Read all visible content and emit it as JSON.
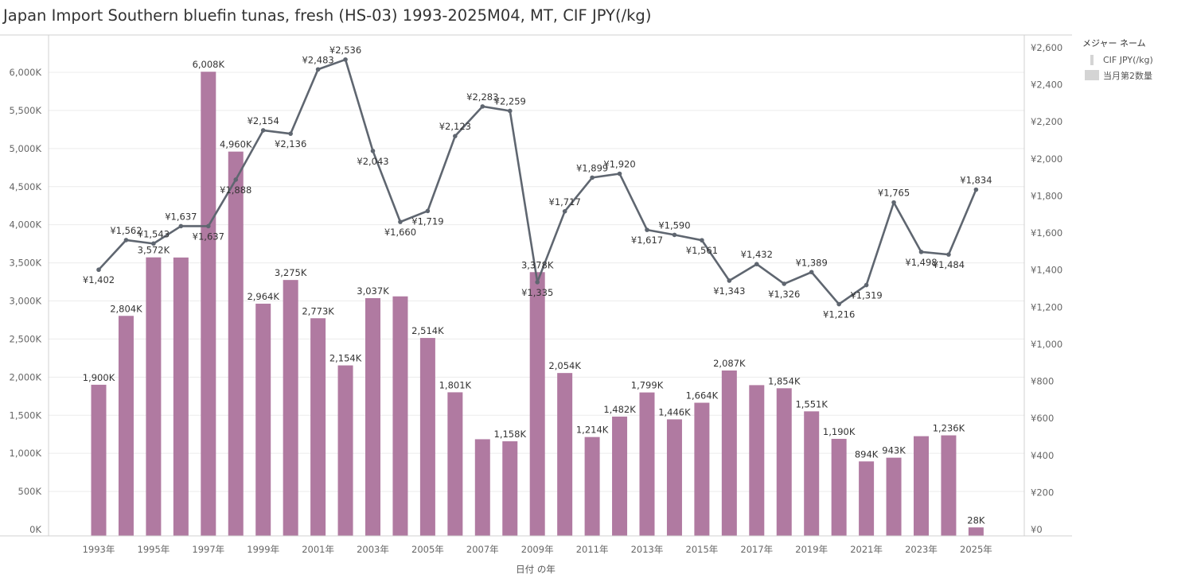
{
  "title": "Japan Import Southern bluefin tunas, fresh (HS-03) 1993-2025M04, MT, CIF JPY(/kg)",
  "legend": {
    "title": "メジャー ネーム",
    "items": [
      {
        "label": "CIF JPY(/kg)",
        "kind": "line"
      },
      {
        "label": "当月第2数量",
        "kind": "bar"
      }
    ]
  },
  "colors": {
    "bar": "#b07aa1",
    "line": "#5f6670",
    "grid": "#ececec",
    "axis": "#d0d0d0"
  },
  "chart_data": {
    "type": "bar",
    "xlabel": "日付 の年",
    "x": [
      1993,
      1994,
      1995,
      1996,
      1997,
      1998,
      1999,
      2000,
      2001,
      2002,
      2003,
      2004,
      2005,
      2006,
      2007,
      2008,
      2009,
      2010,
      2011,
      2012,
      2013,
      2014,
      2015,
      2016,
      2017,
      2018,
      2019,
      2020,
      2021,
      2022,
      2023,
      2024,
      2025
    ],
    "x_tick_labels": [
      "1993年",
      "1995年",
      "1997年",
      "1999年",
      "2001年",
      "2003年",
      "2005年",
      "2007年",
      "2009年",
      "2011年",
      "2013年",
      "2015年",
      "2017年",
      "2019年",
      "2021年",
      "2023年",
      "2025年"
    ],
    "y_left": {
      "ylim": [
        0,
        6500
      ],
      "ticks": [
        0,
        500,
        1000,
        1500,
        2000,
        2500,
        3000,
        3500,
        4000,
        4500,
        5000,
        5500,
        6000
      ],
      "tick_labels": [
        "0K",
        "500K",
        "1,000K",
        "1,500K",
        "2,000K",
        "2,500K",
        "3,000K",
        "3,500K",
        "4,000K",
        "4,500K",
        "5,000K",
        "5,500K",
        "6,000K"
      ]
    },
    "y_right": {
      "ylim": [
        0,
        2600
      ],
      "ticks": [
        0,
        200,
        400,
        600,
        800,
        1000,
        1200,
        1400,
        1600,
        1800,
        2000,
        2200,
        2400,
        2600
      ],
      "tick_labels": [
        "¥0",
        "¥200",
        "¥400",
        "¥600",
        "¥800",
        "¥1,000",
        "¥1,200",
        "¥1,400",
        "¥1,600",
        "¥1,800",
        "¥2,000",
        "¥2,200",
        "¥2,400",
        "¥2,600"
      ]
    },
    "series": [
      {
        "name": "当月第2数量",
        "type": "bar",
        "axis": "left",
        "values": [
          1900,
          2804,
          3572,
          3570,
          6008,
          4960,
          2964,
          3275,
          2773,
          2154,
          3037,
          3060,
          2514,
          1801,
          1185,
          1158,
          3378,
          2054,
          1214,
          1482,
          1799,
          1446,
          1664,
          2087,
          1895,
          1854,
          1551,
          1190,
          894,
          943,
          1225,
          1236,
          28
        ],
        "labels": [
          "1,900K",
          "2,804K",
          "3,572K",
          "",
          "6,008K",
          "4,960K",
          "2,964K",
          "3,275K",
          "2,773K",
          "2,154K",
          "3,037K",
          "",
          "2,514K",
          "1,801K",
          "",
          "1,158K",
          "3,378K",
          "2,054K",
          "1,214K",
          "1,482K",
          "1,799K",
          "1,446K",
          "1,664K",
          "2,087K",
          "",
          "1,854K",
          "1,551K",
          "1,190K",
          "894K",
          "943K",
          "",
          "1,236K",
          "28K"
        ]
      },
      {
        "name": "CIF JPY(/kg)",
        "type": "line",
        "axis": "right",
        "values": [
          1402,
          1562,
          1543,
          1637,
          1637,
          1888,
          2154,
          2136,
          2483,
          2536,
          2043,
          1660,
          1719,
          2123,
          2283,
          2259,
          1335,
          1717,
          1899,
          1920,
          1617,
          1590,
          1561,
          1343,
          1432,
          1326,
          1389,
          1216,
          1319,
          1765,
          1498,
          1484,
          1834
        ],
        "labels": [
          "¥1,402",
          "¥1,562",
          "¥1,543",
          "¥1,637",
          "¥1,637",
          "¥1,888",
          "¥2,154",
          "¥2,136",
          "¥2,483",
          "¥2,536",
          "¥2,043",
          "¥1,660",
          "¥1,719",
          "¥2,123",
          "¥2,283",
          "¥2,259",
          "¥1,335",
          "¥1,717",
          "¥1,899",
          "¥1,920",
          "¥1,617",
          "¥1,590",
          "¥1,561",
          "¥1,343",
          "¥1,432",
          "¥1,326",
          "¥1,389",
          "¥1,216",
          "¥1,319",
          "¥1,765",
          "¥1,498",
          "¥1,484",
          "¥1,834"
        ],
        "label_side": [
          "below",
          "above",
          "above",
          "above",
          "below",
          "below",
          "above",
          "below",
          "above",
          "above",
          "below",
          "below",
          "below",
          "above",
          "above",
          "above",
          "below",
          "above",
          "above",
          "above",
          "below",
          "above",
          "below",
          "below",
          "above",
          "below",
          "above",
          "below",
          "below",
          "above",
          "below",
          "below",
          "above"
        ]
      }
    ]
  }
}
